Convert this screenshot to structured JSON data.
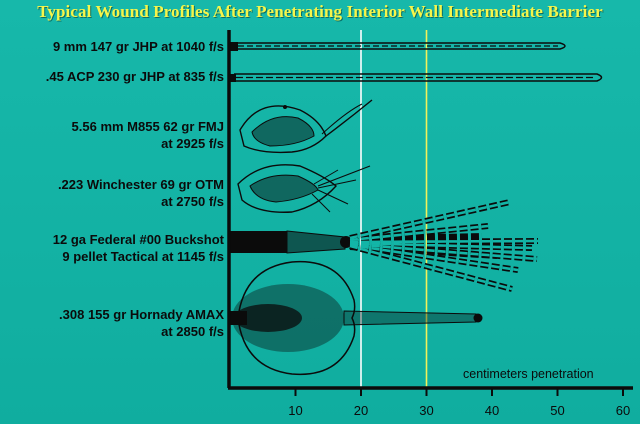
{
  "title": "Typical Wound Profiles After Penetrating Interior Wall Intermediate Barrier",
  "rows": [
    {
      "line1": "9 mm 147 gr JHP at 1040 f/s",
      "line2": ""
    },
    {
      "line1": ".45 ACP 230 gr JHP at 835 f/s",
      "line2": ""
    },
    {
      "line1": "5.56 mm M855 62 gr FMJ",
      "line2": "at 2925 f/s"
    },
    {
      "line1": ".223 Winchester 69 gr OTM",
      "line2": "at 2750 f/s"
    },
    {
      "line1": "12 ga Federal #00 Buckshot",
      "line2": "9 pellet Tactical at 1145 f/s"
    },
    {
      "line1": ".308 155 gr Hornady AMAX",
      "line2": "at 2850 f/s"
    }
  ],
  "axis": {
    "caption": "centimeters penetration",
    "ticks": [
      "10",
      "20",
      "30",
      "40",
      "50",
      "60"
    ],
    "range_cm": [
      0,
      60
    ]
  },
  "reference_lines": [
    {
      "cm": 20,
      "color": "#ffffff"
    },
    {
      "cm": 30,
      "color": "#f2f25a"
    }
  ],
  "colors": {
    "background": "#13b5a7",
    "title": "#f6f54a",
    "ink": "#0b0b0b"
  }
}
